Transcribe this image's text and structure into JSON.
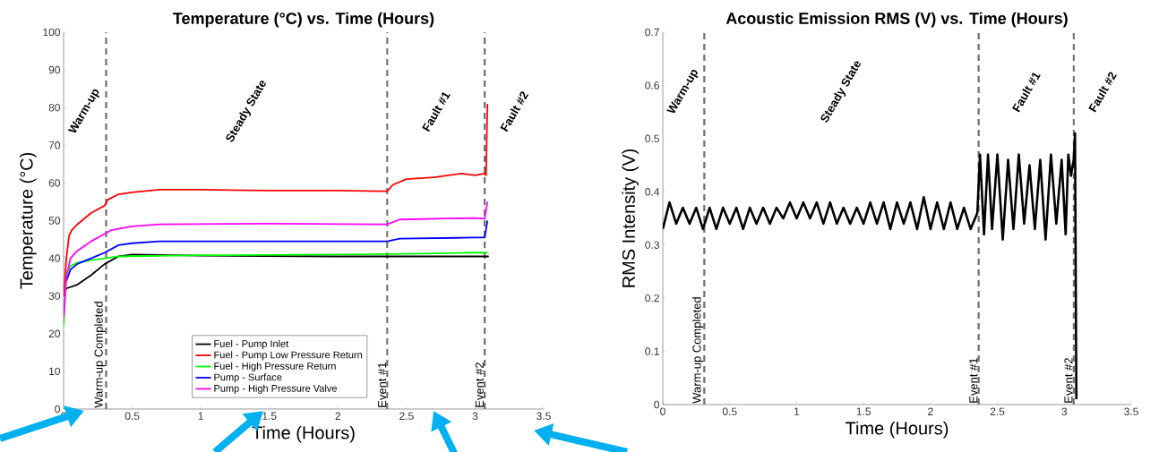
{
  "chart_data": [
    {
      "type": "line",
      "title": "Temperature (°C) vs. Time (Hours)",
      "xlabel": "Time (Hours)",
      "ylabel": "Temperature (°C)",
      "xlim": [
        0,
        3.5
      ],
      "ylim": [
        0,
        100
      ],
      "xticks": [
        0,
        0.5,
        1,
        1.5,
        2,
        2.5,
        3,
        3.5
      ],
      "yticks": [
        0,
        10,
        20,
        30,
        40,
        50,
        60,
        70,
        80,
        90,
        100
      ],
      "grid": false,
      "legend": "bottom",
      "marker": "none",
      "line_style": "solid",
      "series": [
        {
          "name": "Fuel - Pump Inlet",
          "color": "#000000",
          "x": [
            0,
            0.02,
            0.1,
            0.2,
            0.3,
            0.4,
            0.5,
            1.0,
            2.0,
            3.0,
            3.1
          ],
          "values": [
            30,
            32,
            33,
            35.5,
            38.5,
            40.5,
            41,
            40.7,
            40.5,
            40.5,
            40.5
          ]
        },
        {
          "name": "Fuel - Pump Low Pressure Return",
          "color": "#ff0000",
          "x": [
            0,
            0.02,
            0.04,
            0.06,
            0.1,
            0.2,
            0.3,
            0.32,
            0.4,
            0.5,
            0.7,
            1.0,
            1.5,
            2.0,
            2.3,
            2.36,
            2.4,
            2.5,
            2.7,
            2.9,
            3.0,
            3.07,
            3.08,
            3.09
          ],
          "values": [
            30,
            40,
            46,
            47.5,
            49,
            52,
            54,
            55.5,
            57,
            57.5,
            58.2,
            58.2,
            58,
            58,
            57.8,
            57.8,
            59.5,
            61,
            61.5,
            62.5,
            62,
            62.5,
            62,
            81
          ]
        },
        {
          "name": "Fuel - High Pressure Return",
          "color": "#00ff00",
          "x": [
            0,
            0.02,
            0.05,
            0.1,
            0.2,
            0.3,
            0.4,
            1.0,
            2.0,
            2.5,
            3.0,
            3.09
          ],
          "values": [
            22,
            36,
            38,
            38.8,
            39.5,
            40,
            40.5,
            40.8,
            41,
            41.2,
            41.5,
            41.5
          ]
        },
        {
          "name": "Pump - Surface",
          "color": "#0000ff",
          "x": [
            0.02,
            0.05,
            0.1,
            0.2,
            0.3,
            0.4,
            0.5,
            0.7,
            1.5,
            2.3,
            2.36,
            2.45,
            3.0,
            3.07,
            3.09
          ],
          "values": [
            34,
            37,
            38.5,
            40,
            41.5,
            43.5,
            44,
            44.5,
            44.5,
            44.5,
            44.5,
            45.2,
            45.5,
            45.5,
            50
          ]
        },
        {
          "name": "Pump - High Pressure Valve",
          "color": "#ff00ff",
          "x": [
            0,
            0.02,
            0.05,
            0.1,
            0.2,
            0.3,
            0.35,
            0.5,
            0.7,
            1.5,
            2.3,
            2.36,
            2.45,
            3.0,
            3.07,
            3.09
          ],
          "values": [
            24,
            35,
            40,
            42,
            44.5,
            46.5,
            47.5,
            48.5,
            49,
            49.2,
            49,
            49,
            50.3,
            50.7,
            50.5,
            55
          ]
        }
      ],
      "ref_lines": [
        {
          "axis": "x",
          "value": 0.31,
          "label": "Warm-up Completed",
          "color": "#6e6e6e",
          "line_style": "dashed"
        },
        {
          "axis": "x",
          "value": 2.36,
          "label": "Event #1",
          "color": "#6e6e6e",
          "line_style": "dashed"
        },
        {
          "axis": "x",
          "value": 3.07,
          "label": "Event #2",
          "color": "#6e6e6e",
          "line_style": "dashed"
        }
      ],
      "annotations": [
        "Warm-up",
        "Steady State",
        "Fault #1",
        "Fault #2"
      ]
    },
    {
      "type": "line",
      "title": "Acoustic Emission RMS (V) vs. Time (Hours)",
      "xlabel": "Time (Hours)",
      "ylabel": "RMS Intensity (V)",
      "xlim": [
        0,
        3.5
      ],
      "ylim": [
        0,
        0.7
      ],
      "xticks": [
        0,
        0.5,
        1,
        1.5,
        2,
        2.5,
        3,
        3.5
      ],
      "yticks": [
        0,
        0.1,
        0.2,
        0.3,
        0.4,
        0.5,
        0.6,
        0.7
      ],
      "grid": false,
      "legend": false,
      "marker": "none",
      "line_style": "solid",
      "series": [
        {
          "color": "#000000",
          "x": [
            0,
            0.05,
            0.1,
            0.15,
            0.2,
            0.25,
            0.3,
            0.35,
            0.4,
            0.45,
            0.5,
            0.55,
            0.6,
            0.65,
            0.7,
            0.75,
            0.8,
            0.85,
            0.9,
            0.95,
            1.0,
            1.05,
            1.1,
            1.15,
            1.2,
            1.25,
            1.3,
            1.35,
            1.4,
            1.45,
            1.5,
            1.55,
            1.6,
            1.65,
            1.7,
            1.75,
            1.8,
            1.85,
            1.9,
            1.95,
            2.0,
            2.05,
            2.1,
            2.15,
            2.2,
            2.25,
            2.3,
            2.35,
            2.37,
            2.4,
            2.43,
            2.46,
            2.5,
            2.54,
            2.58,
            2.62,
            2.66,
            2.7,
            2.74,
            2.78,
            2.82,
            2.86,
            2.9,
            2.94,
            2.98,
            3.01,
            3.03,
            3.05,
            3.07,
            3.08,
            3.09
          ],
          "values": [
            0.33,
            0.38,
            0.34,
            0.37,
            0.34,
            0.37,
            0.33,
            0.37,
            0.33,
            0.37,
            0.34,
            0.37,
            0.33,
            0.37,
            0.34,
            0.37,
            0.34,
            0.37,
            0.35,
            0.38,
            0.35,
            0.38,
            0.35,
            0.38,
            0.34,
            0.38,
            0.34,
            0.37,
            0.34,
            0.37,
            0.34,
            0.38,
            0.34,
            0.38,
            0.33,
            0.38,
            0.34,
            0.38,
            0.33,
            0.39,
            0.33,
            0.38,
            0.33,
            0.38,
            0.33,
            0.37,
            0.33,
            0.36,
            0.47,
            0.32,
            0.47,
            0.33,
            0.47,
            0.31,
            0.46,
            0.33,
            0.47,
            0.34,
            0.45,
            0.33,
            0.46,
            0.31,
            0.47,
            0.34,
            0.46,
            0.32,
            0.47,
            0.43,
            0.46,
            0.51,
            0.01
          ]
        }
      ],
      "ref_lines": [
        {
          "axis": "x",
          "value": 0.31,
          "label": "Warm-up Completed",
          "color": "#6e6e6e",
          "line_style": "dashed"
        },
        {
          "axis": "x",
          "value": 2.36,
          "label": "Event #1",
          "color": "#6e6e6e",
          "line_style": "dashed"
        },
        {
          "axis": "x",
          "value": 3.07,
          "label": "Event #2",
          "color": "#6e6e6e",
          "line_style": "dashed"
        }
      ],
      "annotations": [
        "Warm-up",
        "Steady State",
        "Fault #1",
        "Fault #2"
      ]
    }
  ]
}
